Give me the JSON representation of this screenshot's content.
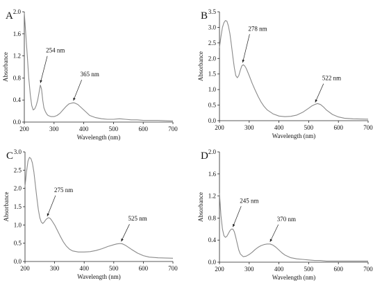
{
  "chart_data": [
    {
      "type": "line",
      "panel_label": "A",
      "xlabel": "Wavelength (nm)",
      "ylabel": "Absorbance",
      "xlim": [
        200,
        700
      ],
      "ylim": [
        0,
        2.0
      ],
      "xticks": [
        200,
        300,
        400,
        500,
        600,
        700
      ],
      "yticks": [
        "0.0",
        "0.4",
        "0.8",
        "1.2",
        "1.6",
        "2.0"
      ],
      "color": "#8a8a8a",
      "series": [
        {
          "x": [
            200,
            205,
            210,
            215,
            220,
            225,
            230,
            235,
            240,
            245,
            250,
            254,
            258,
            262,
            266,
            270,
            275,
            280,
            290,
            300,
            310,
            320,
            330,
            340,
            350,
            360,
            365,
            370,
            380,
            390,
            400,
            410,
            420,
            440,
            460,
            480,
            500,
            520,
            540,
            560,
            580,
            600,
            650,
            700
          ],
          "y": [
            1.98,
            1.6,
            1.2,
            0.8,
            0.5,
            0.3,
            0.22,
            0.24,
            0.3,
            0.4,
            0.55,
            0.67,
            0.6,
            0.4,
            0.26,
            0.2,
            0.15,
            0.12,
            0.1,
            0.1,
            0.12,
            0.16,
            0.22,
            0.28,
            0.33,
            0.345,
            0.35,
            0.345,
            0.32,
            0.27,
            0.22,
            0.17,
            0.12,
            0.08,
            0.06,
            0.05,
            0.05,
            0.06,
            0.05,
            0.04,
            0.04,
            0.03,
            0.03,
            0.02
          ]
        }
      ],
      "annotations": [
        {
          "text": "254 nm",
          "x": 254,
          "y": 0.67
        },
        {
          "text": "365 nm",
          "x": 365,
          "y": 0.35
        }
      ]
    },
    {
      "type": "line",
      "panel_label": "B",
      "xlabel": "Wavelength (nm)",
      "ylabel": "Absorbance",
      "xlim": [
        200,
        700
      ],
      "ylim": [
        0,
        3.5
      ],
      "xticks": [
        200,
        300,
        400,
        500,
        600,
        700
      ],
      "yticks": [
        "0.0",
        "0.5",
        "1.0",
        "1.5",
        "2.0",
        "2.5",
        "3.0",
        "3.5"
      ],
      "color": "#8a8a8a",
      "series": [
        {
          "x": [
            200,
            205,
            210,
            215,
            220,
            225,
            230,
            235,
            240,
            245,
            250,
            255,
            260,
            265,
            270,
            275,
            280,
            285,
            290,
            300,
            310,
            320,
            330,
            340,
            350,
            360,
            380,
            400,
            420,
            440,
            460,
            480,
            500,
            510,
            520,
            530,
            540,
            550,
            560,
            580,
            600,
            620,
            650,
            700
          ],
          "y": [
            2.35,
            2.7,
            3.0,
            3.15,
            3.22,
            3.2,
            3.05,
            2.8,
            2.45,
            2.05,
            1.7,
            1.45,
            1.38,
            1.45,
            1.62,
            1.76,
            1.8,
            1.76,
            1.68,
            1.45,
            1.2,
            0.98,
            0.78,
            0.6,
            0.46,
            0.35,
            0.22,
            0.15,
            0.13,
            0.14,
            0.18,
            0.27,
            0.4,
            0.47,
            0.52,
            0.55,
            0.52,
            0.44,
            0.34,
            0.2,
            0.12,
            0.08,
            0.06,
            0.05
          ]
        }
      ],
      "annotations": [
        {
          "text": "278 nm",
          "x": 278,
          "y": 1.8
        },
        {
          "text": "522 nm",
          "x": 522,
          "y": 0.52
        }
      ]
    },
    {
      "type": "line",
      "panel_label": "C",
      "xlabel": "Wavelength (nm)",
      "ylabel": "Absorbance",
      "xlim": [
        200,
        700
      ],
      "ylim": [
        0,
        3.0
      ],
      "xticks": [
        200,
        300,
        400,
        500,
        600,
        700
      ],
      "yticks": [
        "0.0",
        "0.5",
        "1.0",
        "1.5",
        "2.0",
        "2.5",
        "3.0"
      ],
      "color": "#8a8a8a",
      "series": [
        {
          "x": [
            200,
            205,
            210,
            215,
            220,
            225,
            230,
            235,
            240,
            245,
            250,
            255,
            260,
            265,
            270,
            275,
            280,
            285,
            290,
            300,
            310,
            320,
            330,
            340,
            350,
            360,
            380,
            400,
            420,
            440,
            460,
            480,
            500,
            510,
            520,
            525,
            530,
            540,
            560,
            580,
            600,
            620,
            650,
            700
          ],
          "y": [
            2.05,
            2.45,
            2.75,
            2.85,
            2.82,
            2.7,
            2.45,
            2.1,
            1.75,
            1.42,
            1.2,
            1.08,
            1.04,
            1.08,
            1.14,
            1.18,
            1.2,
            1.18,
            1.13,
            1.0,
            0.84,
            0.68,
            0.53,
            0.42,
            0.34,
            0.29,
            0.26,
            0.26,
            0.27,
            0.3,
            0.35,
            0.41,
            0.46,
            0.48,
            0.49,
            0.49,
            0.48,
            0.44,
            0.33,
            0.23,
            0.16,
            0.12,
            0.1,
            0.09
          ]
        }
      ],
      "annotations": [
        {
          "text": "275 nm",
          "x": 275,
          "y": 1.18
        },
        {
          "text": "525 nm",
          "x": 525,
          "y": 0.49
        }
      ]
    },
    {
      "type": "line",
      "panel_label": "D",
      "xlabel": "Wavelength (nm)",
      "ylabel": "Absorbance",
      "xlim": [
        200,
        700
      ],
      "ylim": [
        0,
        2.0
      ],
      "xticks": [
        200,
        300,
        400,
        500,
        600,
        700
      ],
      "yticks": [
        "0.0",
        "0.4",
        "0.8",
        "1.2",
        "1.6",
        "2.0"
      ],
      "color": "#8a8a8a",
      "series": [
        {
          "x": [
            200,
            205,
            210,
            215,
            220,
            225,
            230,
            235,
            240,
            245,
            250,
            255,
            260,
            265,
            270,
            280,
            290,
            300,
            310,
            320,
            330,
            340,
            350,
            360,
            370,
            380,
            390,
            400,
            410,
            420,
            440,
            460,
            480,
            500,
            520,
            540,
            560,
            580,
            600,
            650,
            700
          ],
          "y": [
            1.25,
            0.85,
            0.6,
            0.48,
            0.45,
            0.47,
            0.52,
            0.57,
            0.6,
            0.6,
            0.55,
            0.45,
            0.33,
            0.22,
            0.15,
            0.1,
            0.11,
            0.14,
            0.18,
            0.23,
            0.27,
            0.3,
            0.32,
            0.33,
            0.33,
            0.31,
            0.27,
            0.22,
            0.17,
            0.13,
            0.08,
            0.06,
            0.05,
            0.04,
            0.03,
            0.03,
            0.02,
            0.02,
            0.02,
            0.02,
            0.02
          ]
        }
      ],
      "annotations": [
        {
          "text": "245 nm",
          "x": 245,
          "y": 0.6
        },
        {
          "text": "370 nm",
          "x": 370,
          "y": 0.33
        }
      ]
    }
  ]
}
